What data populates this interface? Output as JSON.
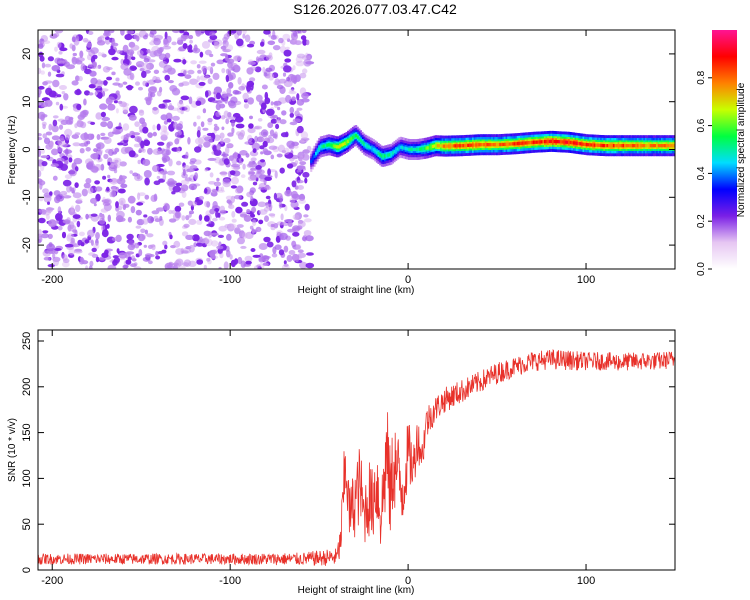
{
  "figure_title": "S126.2026.077.03.47.C42",
  "chart_data": [
    {
      "type": "heatmap",
      "title": "",
      "xlabel": "Height of straight line (km)",
      "ylabel": "Frequency (Hz)",
      "xlim": [
        -208,
        150
      ],
      "ylim": [
        -25,
        25
      ],
      "xticks": [
        -200,
        -100,
        0,
        100
      ],
      "yticks": [
        -20,
        -10,
        0,
        10,
        20
      ],
      "xtick_labels": [
        "-200",
        "-100",
        "0",
        "100"
      ],
      "ytick_labels": [
        "-20",
        "-10",
        "0",
        "10",
        "20"
      ],
      "noise_region_x": [
        -208,
        -55
      ],
      "signal_region_x": [
        -55,
        150
      ],
      "signal_trace": {
        "x": [
          -55,
          -50,
          -45,
          -40,
          -35,
          -30,
          -25,
          -20,
          -15,
          -10,
          -5,
          0,
          5,
          10,
          15,
          20,
          30,
          40,
          50,
          60,
          70,
          80,
          90,
          100,
          110,
          120,
          130,
          140,
          150
        ],
        "freq_hz": [
          -2.5,
          0.5,
          1.0,
          0.5,
          1.5,
          3.0,
          1.0,
          0.0,
          -1.5,
          -1.0,
          0.5,
          0.0,
          0.0,
          0.3,
          0.8,
          0.7,
          0.8,
          1.0,
          1.0,
          1.2,
          1.5,
          1.7,
          1.5,
          1.0,
          0.8,
          0.8,
          0.8,
          0.8,
          0.8
        ],
        "amplitude": [
          0.35,
          0.5,
          0.55,
          0.7,
          0.65,
          0.55,
          0.5,
          0.45,
          0.55,
          0.5,
          0.45,
          0.5,
          0.5,
          0.6,
          0.7,
          0.8,
          0.85,
          0.85,
          0.8,
          0.85,
          0.85,
          0.9,
          0.9,
          0.85,
          0.85,
          0.85,
          0.8,
          0.8,
          0.8
        ]
      },
      "colorbar": {
        "label": "Normalized spectral amplitude",
        "range": [
          0.0,
          1.0
        ],
        "ticks": [
          0.0,
          0.2,
          0.4,
          0.6,
          0.8
        ],
        "tick_labels": [
          "0.0",
          "0.2",
          "0.4",
          "0.6",
          "0.8"
        ],
        "colors": [
          "#ffffff",
          "#e6c6f2",
          "#7a1fe6",
          "#0000ff",
          "#00ddff",
          "#00ff40",
          "#c8ff00",
          "#ff8000",
          "#ff0000",
          "#ff1493"
        ]
      }
    },
    {
      "type": "line",
      "title": "",
      "xlabel": "Height of straight line (km)",
      "ylabel": "SNR (10 * v/v)",
      "xlim": [
        -208,
        150
      ],
      "ylim": [
        0,
        262
      ],
      "xticks": [
        -200,
        -100,
        0,
        100
      ],
      "yticks": [
        0,
        50,
        100,
        150,
        200,
        250
      ],
      "xtick_labels": [
        "-200",
        "-100",
        "0",
        "100"
      ],
      "ytick_labels": [
        "0",
        "50",
        "100",
        "150",
        "200",
        "250"
      ],
      "series": [
        {
          "name": "SNR",
          "color": "#e8312a",
          "x": [
            -208,
            -150,
            -100,
            -60,
            -40,
            -38,
            -35,
            -33,
            -30,
            -27,
            -25,
            -22,
            -20,
            -18,
            -15,
            -12,
            -10,
            -8,
            -5,
            -3,
            0,
            3,
            5,
            8,
            10,
            15,
            20,
            30,
            40,
            50,
            60,
            70,
            80,
            90,
            100,
            110,
            120,
            130,
            140,
            150
          ],
          "values": [
            12,
            12,
            12,
            12,
            14,
            30,
            120,
            60,
            75,
            95,
            60,
            80,
            70,
            100,
            60,
            130,
            80,
            120,
            100,
            85,
            130,
            110,
            145,
            125,
            160,
            175,
            185,
            195,
            205,
            215,
            222,
            228,
            230,
            229,
            228,
            228,
            227,
            228,
            228,
            230
          ],
          "noise_amplitude": [
            6,
            6,
            6,
            7,
            10,
            20,
            50,
            30,
            40,
            45,
            35,
            45,
            40,
            55,
            45,
            60,
            50,
            55,
            45,
            40,
            35,
            30,
            25,
            20,
            20,
            15,
            14,
            13,
            12,
            12,
            11,
            11,
            11,
            11,
            10,
            10,
            10,
            10,
            10,
            10
          ]
        }
      ]
    }
  ]
}
